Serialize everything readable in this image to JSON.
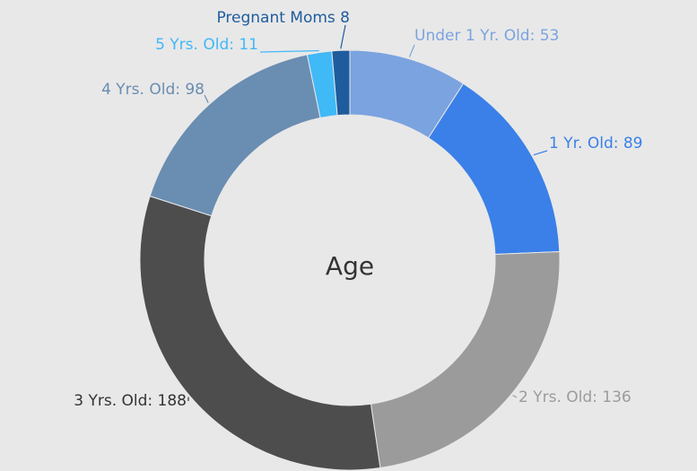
{
  "chart_data": {
    "type": "donut",
    "title": "Age",
    "values": [
      53,
      89,
      136,
      188,
      98,
      11,
      8
    ],
    "value_labels": [
      "Under 1 Yr. Old: 53",
      "1 Yr. Old: 89",
      "2 Yrs. Old: 136",
      "3 Yrs. Old: 188",
      "4 Yrs. Old: 98",
      "5 Yrs. Old: 11",
      "Pregnant Moms 8"
    ],
    "colors": [
      "#7ba3e0",
      "#3a80e8",
      "#9b9b9b",
      "#4d4d4d",
      "#6a8db2",
      "#40b9f7",
      "#1e5c9e"
    ]
  }
}
